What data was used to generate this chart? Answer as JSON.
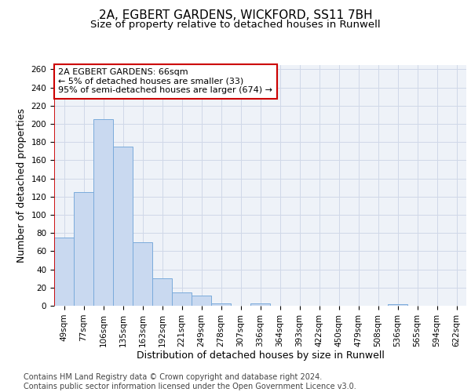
{
  "title_line1": "2A, EGBERT GARDENS, WICKFORD, SS11 7BH",
  "title_line2": "Size of property relative to detached houses in Runwell",
  "xlabel": "Distribution of detached houses by size in Runwell",
  "ylabel": "Number of detached properties",
  "categories": [
    "49sqm",
    "77sqm",
    "106sqm",
    "135sqm",
    "163sqm",
    "192sqm",
    "221sqm",
    "249sqm",
    "278sqm",
    "307sqm",
    "336sqm",
    "364sqm",
    "393sqm",
    "422sqm",
    "450sqm",
    "479sqm",
    "508sqm",
    "536sqm",
    "565sqm",
    "594sqm",
    "622sqm"
  ],
  "values": [
    75,
    125,
    205,
    175,
    70,
    30,
    15,
    11,
    3,
    0,
    3,
    0,
    0,
    0,
    0,
    0,
    0,
    2,
    0,
    0,
    0
  ],
  "bar_color": "#c9d9f0",
  "bar_edge_color": "#7aabdb",
  "highlight_line_color": "#cc0000",
  "annotation_text": "2A EGBERT GARDENS: 66sqm\n← 5% of detached houses are smaller (33)\n95% of semi-detached houses are larger (674) →",
  "annotation_box_color": "#ffffff",
  "annotation_box_edge_color": "#cc0000",
  "ylim": [
    0,
    265
  ],
  "yticks": [
    0,
    20,
    40,
    60,
    80,
    100,
    120,
    140,
    160,
    180,
    200,
    220,
    240,
    260
  ],
  "grid_color": "#d0d8e8",
  "background_color": "#eef2f8",
  "footer_text": "Contains HM Land Registry data © Crown copyright and database right 2024.\nContains public sector information licensed under the Open Government Licence v3.0.",
  "title_fontsize": 11,
  "subtitle_fontsize": 9.5,
  "axis_label_fontsize": 9,
  "tick_fontsize": 7.5,
  "annotation_fontsize": 8,
  "footer_fontsize": 7
}
